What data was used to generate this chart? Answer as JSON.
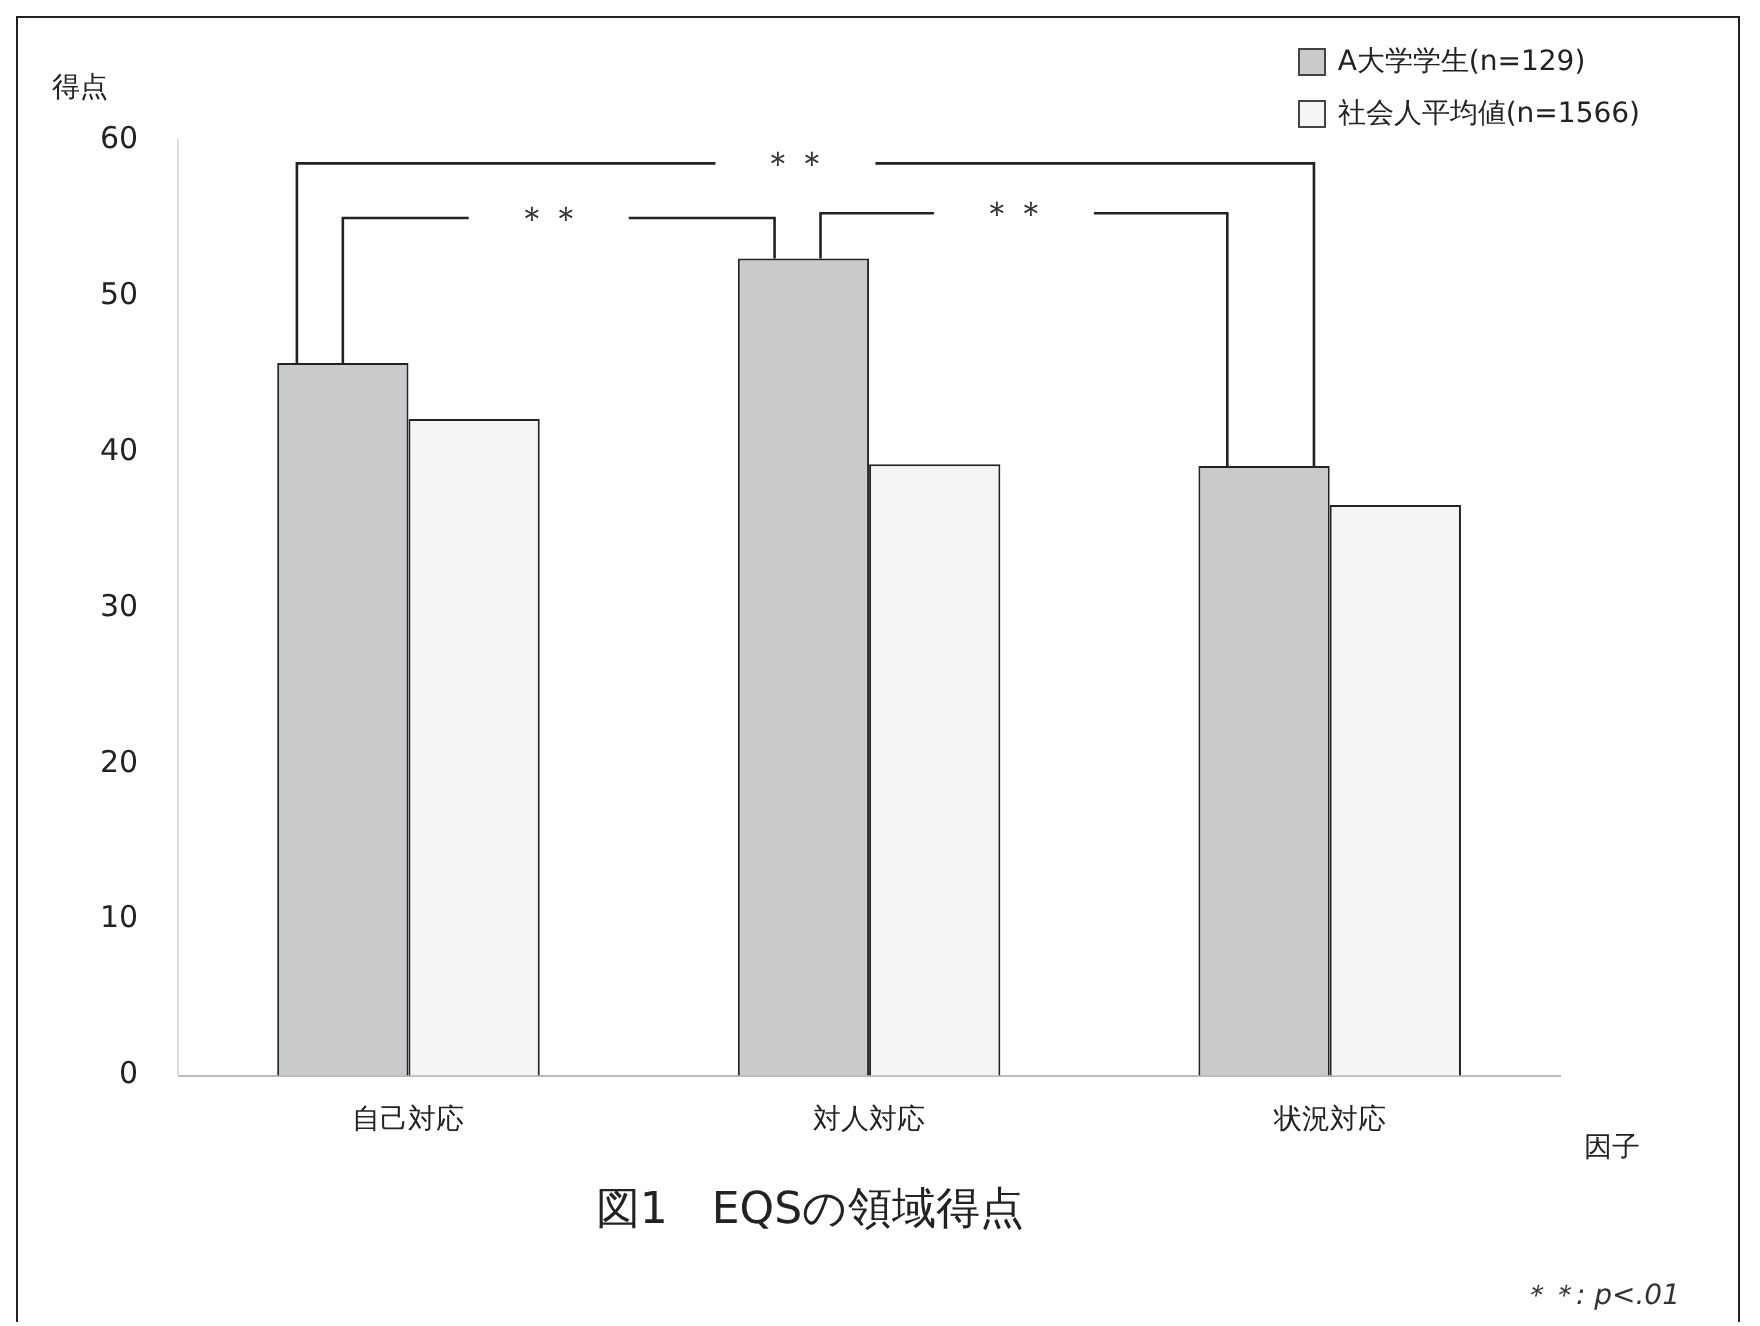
{
  "chart_data": {
    "type": "bar",
    "title": "図1　EQSの領域得点",
    "xlabel": "因子",
    "ylabel": "得点",
    "categories": [
      "自己対応",
      "対人対応",
      "状況対応"
    ],
    "series": [
      {
        "name": "A大学学生(n=129)",
        "color": "#c9cacc",
        "values": [
          45.7,
          52.4,
          39.1
        ]
      },
      {
        "name": "社会人平均値(n=1566)",
        "color": "#f4f4f4",
        "values": [
          42.1,
          39.2,
          36.6
        ]
      }
    ],
    "ylim": [
      0,
      60
    ],
    "yticks": [
      0,
      10,
      20,
      30,
      40,
      50,
      60
    ],
    "grid": false,
    "legend": "top right",
    "annotations": [
      "＊＊",
      "＊＊",
      "＊＊",
      "＊＊: p<.01"
    ]
  }
}
